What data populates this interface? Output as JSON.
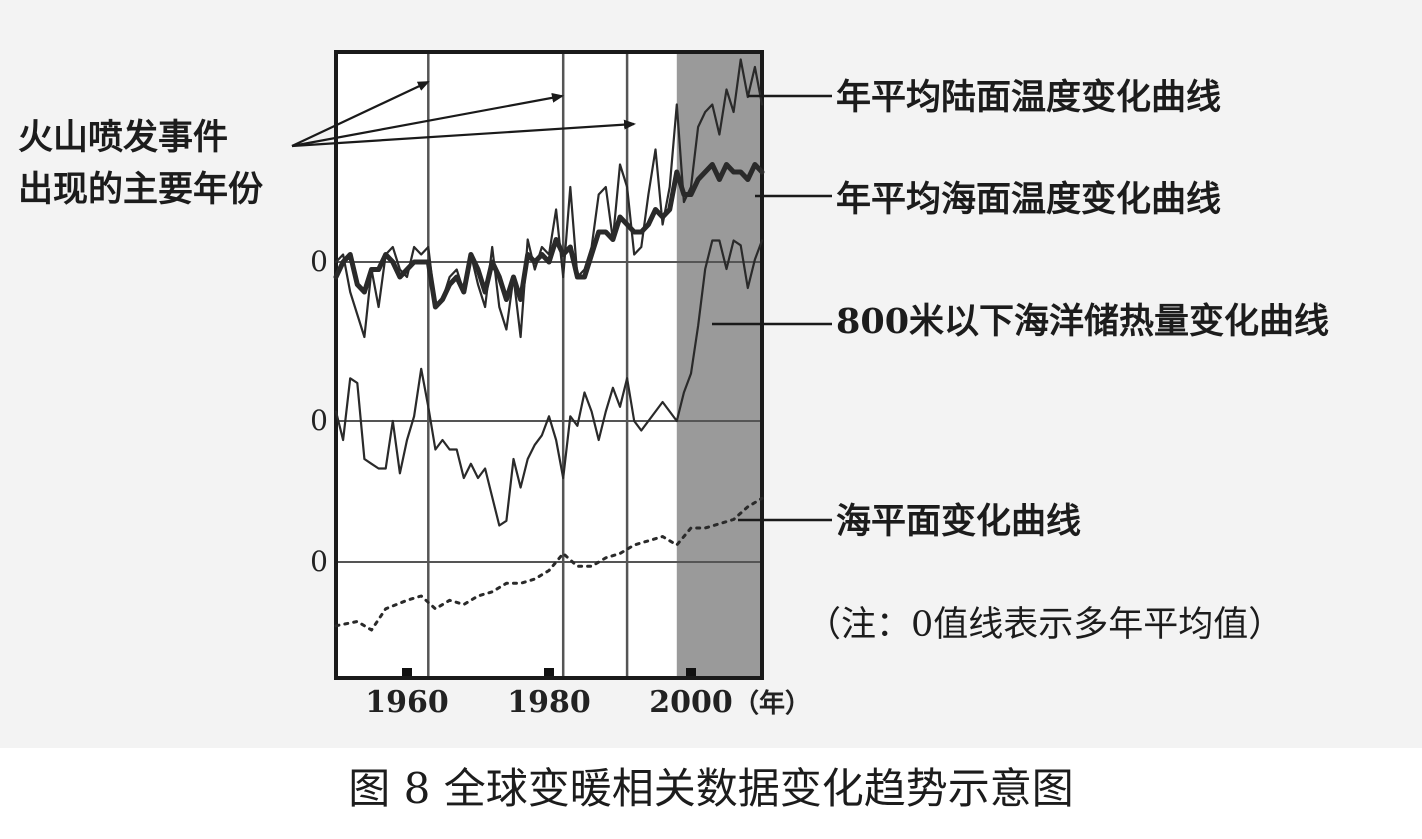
{
  "caption": "图 8 全球变暖相关数据变化趋势示意图",
  "volcano_label": [
    "火山喷发事件",
    "出现的主要年份"
  ],
  "note": "（注：0值线表示多年平均值）",
  "year_unit": "（年）",
  "colors": {
    "background": "#f3f3f3",
    "shaded_period": "#9a9a9a",
    "line": "#2a2a2a",
    "grid": "#555555"
  },
  "chart_data": {
    "type": "line",
    "xlim": [
      1950,
      2010
    ],
    "x_ticks": [
      1960,
      1980,
      2000
    ],
    "zero_lines": [
      "0",
      "0",
      "0"
    ],
    "volcano_years": [
      1963,
      1982,
      1991
    ],
    "shaded_period": [
      1998,
      2010
    ],
    "series": [
      {
        "name": "年平均陆面温度变化曲线",
        "x": [
          1950,
          1951,
          1952,
          1953,
          1954,
          1955,
          1956,
          1957,
          1958,
          1959,
          1960,
          1961,
          1962,
          1963,
          1964,
          1965,
          1966,
          1967,
          1968,
          1969,
          1970,
          1971,
          1972,
          1973,
          1974,
          1975,
          1976,
          1977,
          1978,
          1979,
          1980,
          1981,
          1982,
          1983,
          1984,
          1985,
          1986,
          1987,
          1988,
          1989,
          1990,
          1991,
          1992,
          1993,
          1994,
          1995,
          1996,
          1997,
          1998,
          1999,
          2000,
          2001,
          2002,
          2003,
          2004,
          2005,
          2006,
          2007,
          2008,
          2009,
          2010
        ],
        "y": [
          0.0,
          0.05,
          -0.2,
          -0.35,
          -0.5,
          -0.05,
          -0.3,
          0.05,
          0.1,
          -0.05,
          -0.1,
          0.1,
          0.05,
          0.1,
          -0.3,
          -0.25,
          -0.1,
          -0.05,
          -0.2,
          0.05,
          -0.15,
          -0.3,
          0.1,
          -0.3,
          -0.45,
          -0.1,
          -0.5,
          0.15,
          -0.05,
          0.1,
          0.05,
          0.35,
          -0.1,
          0.5,
          -0.1,
          -0.05,
          0.1,
          0.45,
          0.5,
          0.15,
          0.65,
          0.5,
          0.05,
          0.1,
          0.45,
          0.75,
          0.25,
          0.5,
          1.05,
          0.4,
          0.5,
          0.9,
          1.0,
          1.05,
          0.85,
          1.15,
          1.0,
          1.35,
          1.1,
          1.3,
          1.05
        ]
      },
      {
        "name": "年平均海面温度变化曲线",
        "x": [
          1950,
          1951,
          1952,
          1953,
          1954,
          1955,
          1956,
          1957,
          1958,
          1959,
          1960,
          1961,
          1962,
          1963,
          1964,
          1965,
          1966,
          1967,
          1968,
          1969,
          1970,
          1971,
          1972,
          1973,
          1974,
          1975,
          1976,
          1977,
          1978,
          1979,
          1980,
          1981,
          1982,
          1983,
          1984,
          1985,
          1986,
          1987,
          1988,
          1989,
          1990,
          1991,
          1992,
          1993,
          1994,
          1995,
          1996,
          1997,
          1998,
          1999,
          2000,
          2001,
          2002,
          2003,
          2004,
          2005,
          2006,
          2007,
          2008,
          2009,
          2010
        ],
        "y": [
          -0.1,
          0.0,
          0.05,
          -0.15,
          -0.2,
          -0.05,
          -0.05,
          0.05,
          0.0,
          -0.1,
          -0.05,
          0.0,
          0.0,
          0.0,
          -0.3,
          -0.25,
          -0.15,
          -0.1,
          -0.2,
          0.05,
          -0.05,
          -0.2,
          0.0,
          -0.1,
          -0.25,
          -0.1,
          -0.25,
          0.05,
          0.0,
          0.05,
          0.0,
          0.15,
          0.05,
          0.1,
          -0.1,
          -0.1,
          0.05,
          0.2,
          0.2,
          0.15,
          0.3,
          0.25,
          0.2,
          0.2,
          0.25,
          0.35,
          0.3,
          0.35,
          0.6,
          0.45,
          0.45,
          0.55,
          0.6,
          0.65,
          0.55,
          0.65,
          0.6,
          0.6,
          0.55,
          0.65,
          0.6
        ]
      },
      {
        "name": "800米以下海洋储热量变化曲线",
        "x": [
          1950,
          1951,
          1952,
          1953,
          1954,
          1955,
          1956,
          1957,
          1958,
          1959,
          1960,
          1961,
          1962,
          1963,
          1964,
          1965,
          1966,
          1967,
          1968,
          1969,
          1970,
          1971,
          1972,
          1973,
          1974,
          1975,
          1976,
          1977,
          1978,
          1979,
          1980,
          1981,
          1982,
          1983,
          1984,
          1985,
          1986,
          1987,
          1988,
          1989,
          1990,
          1991,
          1992,
          1993,
          1994,
          1995,
          1996,
          1997,
          1998,
          1999,
          2000,
          2001,
          2002,
          2003,
          2004,
          2005,
          2006,
          2007,
          2008,
          2009,
          2010
        ],
        "y": [
          0.1,
          -0.2,
          0.45,
          0.4,
          -0.4,
          -0.45,
          -0.5,
          -0.5,
          0.0,
          -0.55,
          -0.2,
          0.05,
          0.55,
          0.15,
          -0.3,
          -0.2,
          -0.3,
          -0.3,
          -0.6,
          -0.45,
          -0.6,
          -0.5,
          -0.8,
          -1.1,
          -1.05,
          -0.4,
          -0.7,
          -0.4,
          -0.25,
          -0.15,
          0.05,
          -0.2,
          -0.6,
          0.05,
          -0.05,
          0.3,
          0.1,
          -0.2,
          0.1,
          0.35,
          0.15,
          0.45,
          0.0,
          -0.1,
          0.0,
          0.1,
          0.2,
          0.1,
          0.0,
          0.3,
          0.5,
          1.0,
          1.6,
          1.9,
          1.9,
          1.6,
          1.9,
          1.85,
          1.4,
          1.7,
          1.9
        ]
      },
      {
        "name": "海平面变化曲线",
        "x": [
          1950,
          1953,
          1955,
          1957,
          1960,
          1962,
          1964,
          1966,
          1968,
          1970,
          1972,
          1974,
          1976,
          1978,
          1980,
          1982,
          1984,
          1986,
          1988,
          1990,
          1992,
          1994,
          1996,
          1998,
          2000,
          2002,
          2004,
          2006,
          2008,
          2010
        ],
        "y": [
          -0.75,
          -0.7,
          -0.8,
          -0.55,
          -0.45,
          -0.4,
          -0.55,
          -0.45,
          -0.5,
          -0.4,
          -0.35,
          -0.25,
          -0.25,
          -0.2,
          -0.1,
          0.1,
          -0.05,
          -0.05,
          0.05,
          0.1,
          0.2,
          0.25,
          0.3,
          0.2,
          0.4,
          0.4,
          0.45,
          0.5,
          0.65,
          0.75
        ]
      }
    ]
  }
}
